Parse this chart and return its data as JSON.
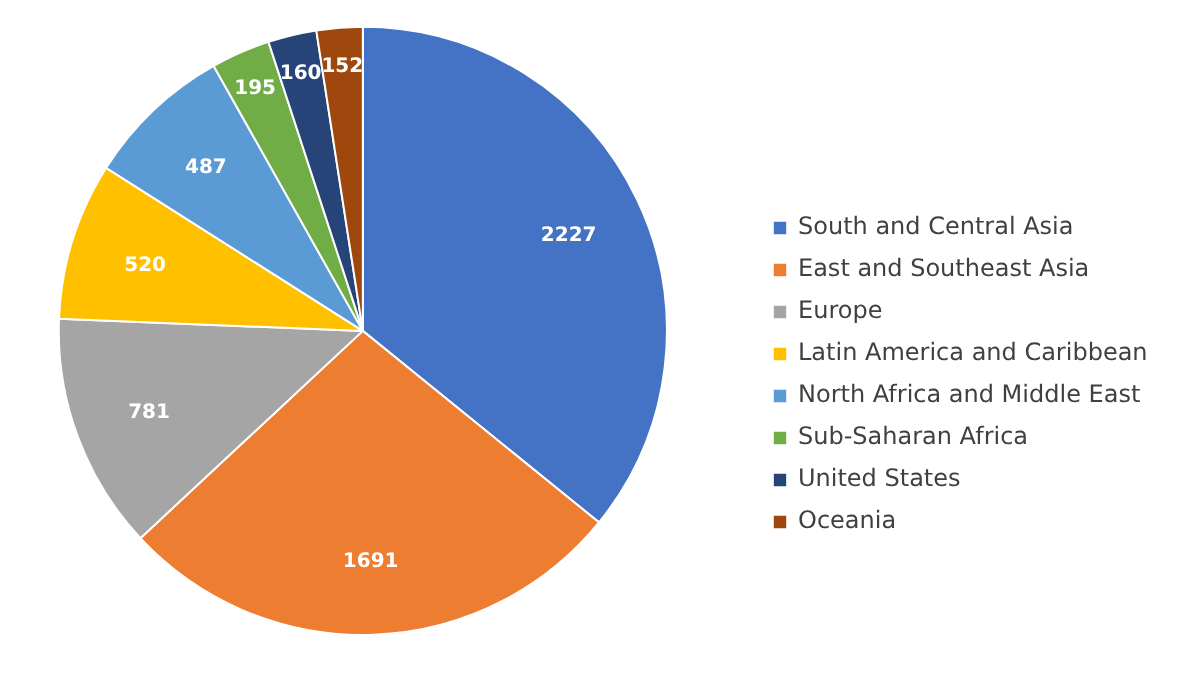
{
  "chart_data": {
    "type": "pie",
    "categories": [
      "South and Central Asia",
      "East and Southeast Asia",
      "Europe",
      "Latin America and Caribbean",
      "North Africa and Middle East",
      "Sub-Saharan Africa",
      "United States",
      "Oceania"
    ],
    "values": [
      2227,
      1691,
      781,
      520,
      487,
      195,
      160,
      152
    ],
    "colors": [
      "#4472c4",
      "#ed7d31",
      "#a5a5a5",
      "#ffc000",
      "#5b9bd5",
      "#70ad47",
      "#264478",
      "#9e480e"
    ],
    "data_labels": true,
    "legend": "right"
  }
}
